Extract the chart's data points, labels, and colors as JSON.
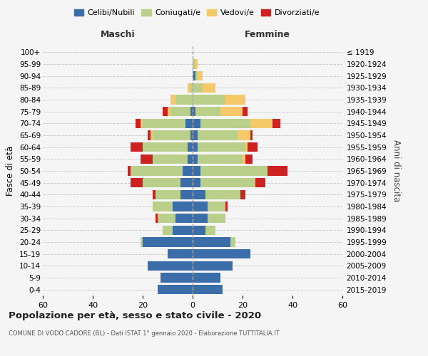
{
  "age_groups": [
    "0-4",
    "5-9",
    "10-14",
    "15-19",
    "20-24",
    "25-29",
    "30-34",
    "35-39",
    "40-44",
    "45-49",
    "50-54",
    "55-59",
    "60-64",
    "65-69",
    "70-74",
    "75-79",
    "80-84",
    "85-89",
    "90-94",
    "95-99",
    "100+"
  ],
  "birth_years": [
    "2015-2019",
    "2010-2014",
    "2005-2009",
    "2000-2004",
    "1995-1999",
    "1990-1994",
    "1985-1989",
    "1980-1984",
    "1975-1979",
    "1970-1974",
    "1965-1969",
    "1960-1964",
    "1955-1959",
    "1950-1954",
    "1945-1949",
    "1940-1944",
    "1935-1939",
    "1930-1934",
    "1925-1929",
    "1920-1924",
    "≤ 1919"
  ],
  "colors": {
    "celibi": "#3B6EA8",
    "coniugati": "#BACF8A",
    "vedovi": "#F5C96A",
    "divorziati": "#CC2222"
  },
  "maschi": {
    "celibi": [
      14,
      13,
      18,
      10,
      20,
      8,
      7,
      8,
      5,
      5,
      4,
      2,
      2,
      1,
      3,
      1,
      0,
      0,
      0,
      0,
      0
    ],
    "coniugati": [
      0,
      0,
      0,
      0,
      1,
      4,
      7,
      8,
      10,
      15,
      21,
      14,
      18,
      15,
      17,
      8,
      7,
      1,
      0,
      0,
      0
    ],
    "vedovi": [
      0,
      0,
      0,
      0,
      0,
      0,
      0,
      0,
      0,
      0,
      0,
      0,
      0,
      1,
      1,
      1,
      2,
      1,
      0,
      0,
      0
    ],
    "divorziati": [
      0,
      0,
      0,
      0,
      0,
      0,
      1,
      0,
      1,
      5,
      1,
      5,
      5,
      1,
      2,
      2,
      0,
      0,
      0,
      0,
      0
    ]
  },
  "femmine": {
    "celibi": [
      12,
      11,
      16,
      23,
      15,
      5,
      6,
      6,
      5,
      3,
      3,
      2,
      2,
      2,
      3,
      1,
      0,
      0,
      1,
      0,
      0
    ],
    "coniugati": [
      0,
      0,
      0,
      0,
      2,
      4,
      7,
      7,
      14,
      22,
      27,
      18,
      19,
      16,
      20,
      10,
      13,
      4,
      1,
      1,
      0
    ],
    "vedovi": [
      0,
      0,
      0,
      0,
      0,
      0,
      0,
      0,
      0,
      0,
      0,
      1,
      1,
      5,
      9,
      9,
      8,
      5,
      2,
      1,
      0
    ],
    "divorziati": [
      0,
      0,
      0,
      0,
      0,
      0,
      0,
      1,
      2,
      4,
      8,
      3,
      4,
      1,
      3,
      2,
      0,
      0,
      0,
      0,
      0
    ]
  },
  "xlim": 60,
  "title": "Popolazione per età, sesso e stato civile - 2020",
  "subtitle": "COMUNE DI VODO CADORE (BL) - Dati ISTAT 1° gennaio 2020 - Elaborazione TUTTITALIA.IT",
  "ylabel_left": "Fasce di età",
  "ylabel_right": "Anni di nascita",
  "header_left": "Maschi",
  "header_right": "Femmine",
  "legend_labels": [
    "Celibi/Nubili",
    "Coniugati/e",
    "Vedovi/e",
    "Divorziati/e"
  ],
  "background_color": "#f5f5f5",
  "grid_color": "#cccccc"
}
